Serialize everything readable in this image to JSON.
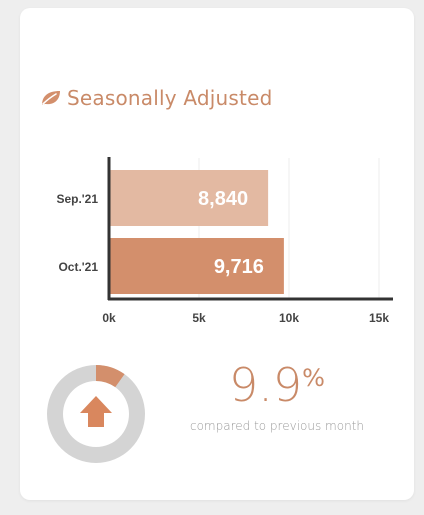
{
  "widget": {
    "title": "Seasonally Adjusted",
    "icon": "leaf-icon",
    "accent_color": "#c98a68"
  },
  "chart_data": {
    "type": "bar",
    "orientation": "horizontal",
    "categories": [
      "Sep.'21",
      "Oct.'21"
    ],
    "values": [
      8840,
      9716
    ],
    "value_labels": [
      "8,840",
      "9,716"
    ],
    "bar_colors": [
      "#e3b9a2",
      "#d38f6c"
    ],
    "xlim": [
      0,
      15000
    ],
    "x_ticks": [
      0,
      5000,
      10000,
      15000
    ],
    "x_tick_labels": [
      "0k",
      "5k",
      "10k",
      "15k"
    ],
    "grid": true,
    "title": "",
    "xlabel": "",
    "ylabel": ""
  },
  "change": {
    "value": "9.9",
    "unit": "%",
    "caption": "compared to previous month",
    "direction": "up",
    "gauge_fraction": 0.099,
    "gauge_fill_color": "#d38f6c",
    "gauge_track_color": "#d4d4d4"
  }
}
